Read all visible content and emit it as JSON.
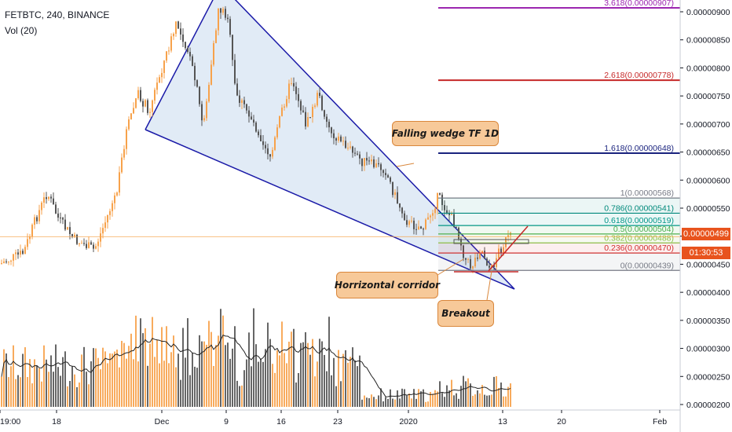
{
  "header": {
    "symbol": "FETBTC, 240, BINANCE",
    "volume_label": "Vol (20)"
  },
  "current_price": {
    "value": "0.00000499",
    "countdown": "01:30:53",
    "price_color": "#e8531d",
    "countdown_color": "#e8531d"
  },
  "annotations": {
    "falling_wedge": "Falling wedge TF 1D",
    "corridor": "Horrizontal corridor",
    "breakout": "Breakout"
  },
  "chart_data": {
    "type": "candlestick",
    "title": "FETBTC, 240, BINANCE",
    "price_axis_ticks": [
      "0.00000900",
      "0.00000850",
      "0.00000800",
      "0.00000750",
      "0.00000700",
      "0.00000650",
      "0.00000600",
      "0.00000550",
      "0.00000500",
      "0.00000450",
      "0.00000400",
      "0.00000350",
      "0.00000300",
      "0.00000250",
      "0.00000200"
    ],
    "time_axis_ticks": [
      "19:00",
      "18",
      "Dec",
      "9",
      "16",
      "23",
      "2020",
      "13",
      "20",
      "Feb"
    ],
    "price_range": [
      1.95e-06,
      9.2e-06
    ],
    "fib_levels": [
      {
        "label": "3.618(0.00000907)",
        "value": 9.07e-06,
        "color": "#9c27b0"
      },
      {
        "label": "2.618(0.00000778)",
        "value": 7.78e-06,
        "color": "#c62828"
      },
      {
        "label": "1.618(0.00000648)",
        "value": 6.48e-06,
        "color": "#1a237e"
      },
      {
        "label": "1(0.00000568)",
        "value": 5.68e-06,
        "color": "#787b86"
      },
      {
        "label": "0.786(0.00000541)",
        "value": 5.41e-06,
        "color": "#00897b"
      },
      {
        "label": "0.618(0.00000519)",
        "value": 5.19e-06,
        "color": "#009688"
      },
      {
        "label": "0.5(0.00000504)",
        "value": 5.04e-06,
        "color": "#4caf50"
      },
      {
        "label": "0.382(0.00000488)",
        "value": 4.88e-06,
        "color": "#8bc34a"
      },
      {
        "label": "0.236(0.00000470)",
        "value": 4.7e-06,
        "color": "#d32f2f"
      },
      {
        "label": "0(0.00000439)",
        "value": 4.39e-06,
        "color": "#787b86"
      }
    ],
    "colors": {
      "up": "#f7a24b",
      "down": "#555555",
      "wedge": "#1a1aa8",
      "wedge_fill": "#dce8f5",
      "vol_ma": "#222222"
    }
  }
}
